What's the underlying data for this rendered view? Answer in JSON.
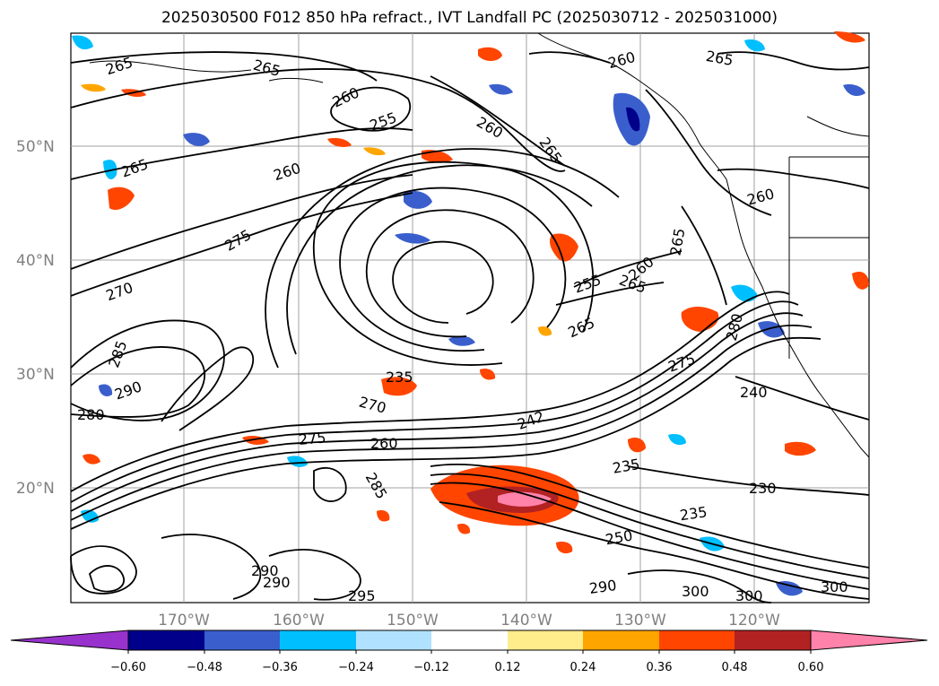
{
  "title": "2025030500 F012 850 hPa refract., IVT Landfall PC (2025030712 - 2025031000)",
  "map": {
    "lat_labels": [
      "50°N",
      "40°N",
      "30°N",
      "20°N"
    ],
    "lon_labels": [
      "170°W",
      "160°W",
      "150°W",
      "140°W",
      "130°W",
      "120°W"
    ],
    "contour_labels": [
      "265",
      "265",
      "260",
      "255",
      "260",
      "265",
      "260",
      "265",
      "265",
      "260",
      "275",
      "270",
      "285",
      "290",
      "280",
      "275",
      "235",
      "270",
      "242",
      "260",
      "235",
      "230",
      "235",
      "250",
      "285",
      "290",
      "290",
      "295",
      "290",
      "300",
      "300",
      "300",
      "275",
      "280",
      "240",
      "255",
      "260",
      "265",
      "265",
      "265",
      "260"
    ]
  },
  "colorbar": {
    "ticks": [
      "−0.60",
      "−0.48",
      "−0.36",
      "−0.24",
      "−0.12",
      "0.12",
      "0.24",
      "0.36",
      "0.48",
      "0.60"
    ],
    "colors": [
      "#9932cc",
      "#00008b",
      "#3a5fcd",
      "#00bfff",
      "#b0e2ff",
      "#ffffff",
      "#ffec8b",
      "#ffa500",
      "#ff4500",
      "#b22222",
      "#ff82ab"
    ]
  }
}
